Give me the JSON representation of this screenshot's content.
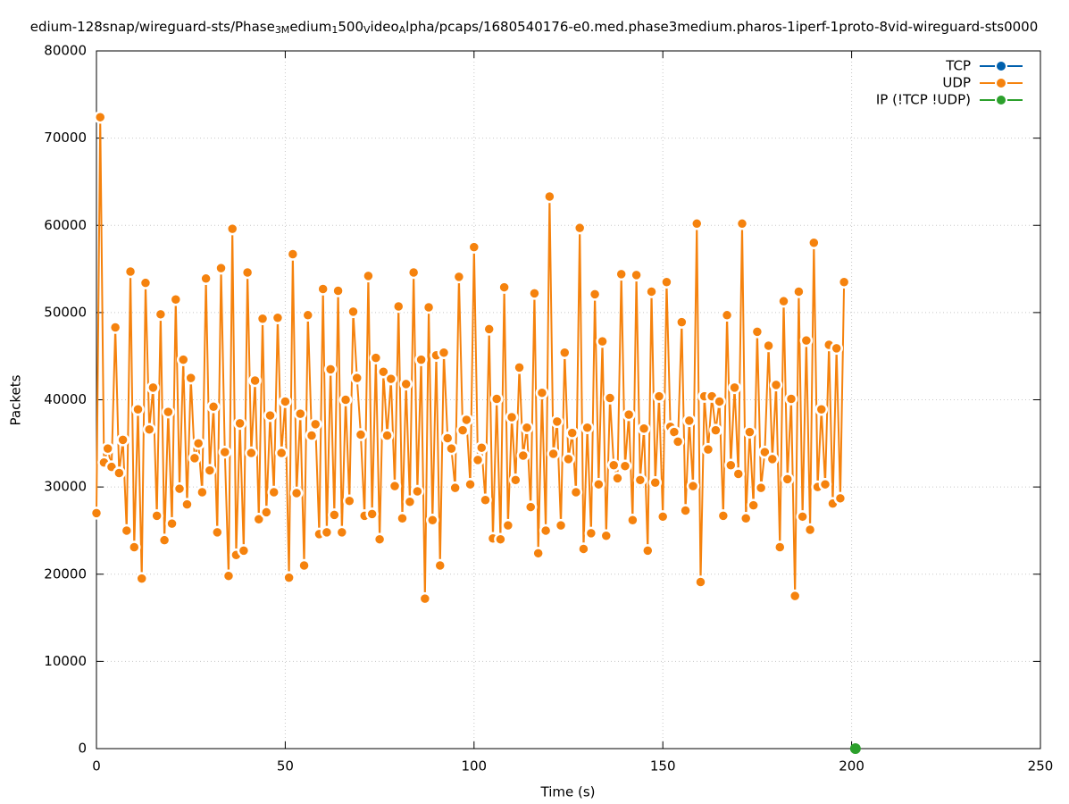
{
  "chart_data": {
    "type": "line",
    "title_parts": [
      "edium-128snap/wireguard-sts/Phase",
      "3M",
      "edium",
      "1",
      "500",
      "V",
      "ideo",
      "A",
      "lpha/pcaps/1680540176-e0.med.phase3medium.pharos-1iperf-1proto-8vid-wireguard-sts0000"
    ],
    "xlabel": "Time (s)",
    "ylabel": "Packets",
    "xlim": [
      0,
      250
    ],
    "xticks": [
      0,
      50,
      100,
      150,
      200,
      250
    ],
    "ylim": [
      0,
      80000
    ],
    "yticks": [
      0,
      10000,
      20000,
      30000,
      40000,
      50000,
      60000,
      70000,
      80000
    ],
    "grid": true,
    "legend": "top-right",
    "series": [
      {
        "name": "TCP",
        "color": "#0060ad",
        "x": [],
        "values": []
      },
      {
        "name": "UDP",
        "color": "#f5820d",
        "x": [
          0,
          1,
          2,
          3,
          4,
          5,
          6,
          7,
          8,
          9,
          10,
          11,
          12,
          13,
          14,
          15,
          16,
          17,
          18,
          19,
          20,
          21,
          22,
          23,
          24,
          25,
          26,
          27,
          28,
          29,
          30,
          31,
          32,
          33,
          34,
          35,
          36,
          37,
          38,
          39,
          40,
          41,
          42,
          43,
          44,
          45,
          46,
          47,
          48,
          49,
          50,
          51,
          52,
          53,
          54,
          55,
          56,
          57,
          58,
          59,
          60,
          61,
          62,
          63,
          64,
          65,
          66,
          67,
          68,
          69,
          70,
          71,
          72,
          73,
          74,
          75,
          76,
          77,
          78,
          79,
          80,
          81,
          82,
          83,
          84,
          85,
          86,
          87,
          88,
          89,
          90,
          91,
          92,
          93,
          94,
          95,
          96,
          97,
          98,
          99,
          100,
          101,
          102,
          103,
          104,
          105,
          106,
          107,
          108,
          109,
          110,
          111,
          112,
          113,
          114,
          115,
          116,
          117,
          118,
          119,
          120,
          121,
          122,
          123,
          124,
          125,
          126,
          127,
          128,
          129,
          130,
          131,
          132,
          133,
          134,
          135,
          136,
          137,
          138,
          139,
          140,
          141,
          142,
          143,
          144,
          145,
          146,
          147,
          148,
          149,
          150,
          151,
          152,
          153,
          154,
          155,
          156,
          157,
          158,
          159,
          160,
          161,
          162,
          163,
          164,
          165,
          166,
          167,
          168,
          169,
          170,
          171,
          172,
          173,
          174,
          175,
          176,
          177,
          178,
          179,
          180,
          181,
          182,
          183,
          184,
          185,
          186,
          187,
          188,
          189,
          190,
          191,
          192,
          193,
          194,
          195,
          196,
          197,
          198
        ],
        "values": [
          27000,
          72400,
          32800,
          34400,
          32300,
          48300,
          31600,
          35400,
          25000,
          54700,
          23100,
          38900,
          19500,
          53400,
          36600,
          41400,
          26700,
          49800,
          23900,
          38600,
          25800,
          51500,
          29800,
          44600,
          28000,
          42500,
          33300,
          35000,
          29400,
          53900,
          31900,
          39200,
          24800,
          55100,
          34000,
          19800,
          59600,
          22200,
          37300,
          22700,
          54600,
          33900,
          42200,
          26300,
          49300,
          27100,
          38200,
          29400,
          49400,
          33900,
          39800,
          19600,
          56700,
          29300,
          38400,
          21000,
          49700,
          35900,
          37200,
          24600,
          52700,
          24800,
          43500,
          26800,
          52500,
          24800,
          40000,
          28400,
          50100,
          42500,
          36000,
          26700,
          54200,
          26900,
          44800,
          24000,
          43200,
          35900,
          42400,
          30100,
          50700,
          26400,
          41800,
          28300,
          54600,
          29500,
          44600,
          17200,
          50600,
          26200,
          45100,
          21000,
          45400,
          35600,
          34400,
          29900,
          54100,
          36500,
          37700,
          30300,
          57500,
          33100,
          34500,
          28500,
          48100,
          24100,
          40100,
          24000,
          52900,
          25600,
          38000,
          30800,
          43700,
          33600,
          36800,
          27700,
          52200,
          22400,
          40800,
          25000,
          63300,
          33800,
          37500,
          25600,
          45400,
          33200,
          36200,
          29400,
          59700,
          22900,
          36800,
          24700,
          52100,
          30300,
          46700,
          24400,
          40200,
          32500,
          31000,
          54400,
          32400,
          38300,
          26200,
          54300,
          30800,
          36700,
          22700,
          52400,
          30500,
          40400,
          26600,
          53500,
          36900,
          36300,
          35200,
          48900,
          27300,
          37600,
          30100,
          60200,
          19100,
          40400,
          34300,
          40400,
          36500,
          39800,
          26700,
          49700,
          32500,
          41400,
          31500,
          60200,
          26400,
          36300,
          27900,
          47800,
          29900,
          34000,
          46200,
          33200,
          41700,
          23100,
          51300,
          30900,
          40100,
          17500,
          52400,
          26600,
          46800,
          25100,
          58000,
          30000,
          38900,
          30300,
          46300,
          28100,
          45900,
          28700,
          53500
        ]
      },
      {
        "name": "IP (!TCP  !UDP)",
        "color": "#2ca02c",
        "x": [
          201
        ],
        "values": [
          0
        ]
      }
    ]
  }
}
